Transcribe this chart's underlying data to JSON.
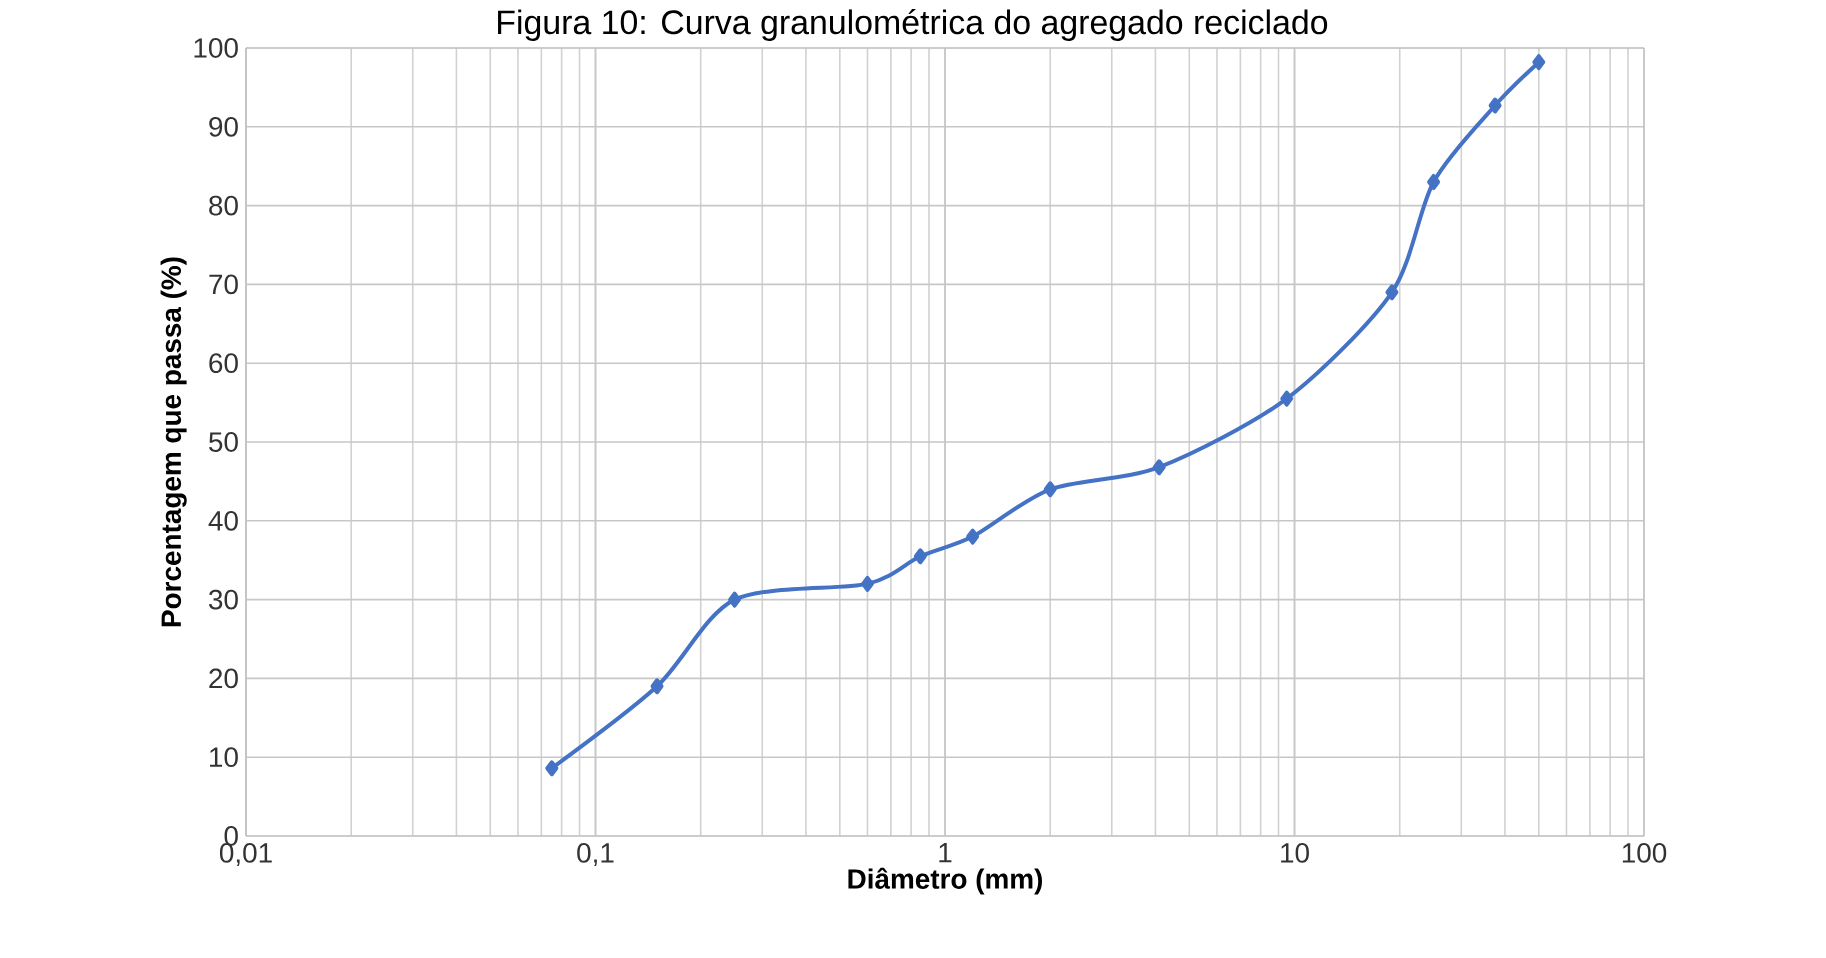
{
  "chart_data": {
    "type": "line",
    "title": "Figura 10: Curva granulométrica do agregado reciclado",
    "xlabel": "Diâmetro (mm)",
    "ylabel": "Porcentagem  que passa (%)",
    "x": [
      0.075,
      0.15,
      0.25,
      0.6,
      0.85,
      1.2,
      2,
      4.1,
      9.5,
      19,
      25,
      37.5,
      50
    ],
    "series": [
      {
        "color": "#4472c4",
        "values": [
          8.6,
          19,
          30,
          32,
          35.5,
          38,
          44,
          46.8,
          55.5,
          69,
          83,
          92.7,
          98.2
        ]
      }
    ],
    "log": "x",
    "xlim": [
      0.01,
      100
    ],
    "xticks": [
      {
        "value": 0.01,
        "label": "0,01"
      },
      {
        "value": 0.1,
        "label": "0,1"
      },
      1,
      10,
      100
    ],
    "ylim": [
      0,
      100
    ],
    "yticks": [
      0,
      10,
      20,
      30,
      40,
      50,
      60,
      70,
      80,
      90,
      100
    ],
    "grid": true,
    "marker": "diamond",
    "line_style": "solid"
  }
}
